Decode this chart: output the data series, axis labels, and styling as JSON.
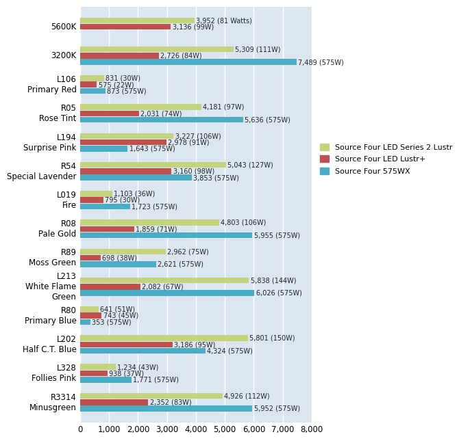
{
  "categories": [
    [
      "5600K",
      ""
    ],
    [
      "3200K",
      ""
    ],
    [
      "L106",
      "Primary Red"
    ],
    [
      "R05",
      "Rose Tint"
    ],
    [
      "L194",
      "Surprise Pink"
    ],
    [
      "R54",
      "Special Lavender"
    ],
    [
      "L019",
      "Fire"
    ],
    [
      "R08",
      "Pale Gold"
    ],
    [
      "R89",
      "Moss Green"
    ],
    [
      "L213",
      "White Flame\nGreen"
    ],
    [
      "R80",
      "Primary Blue"
    ],
    [
      "L202",
      "Half C.T. Blue"
    ],
    [
      "L328",
      "Follies Pink"
    ],
    [
      "R3314",
      "Minusgreen"
    ]
  ],
  "series": [
    {
      "name": "Source Four LED Series 2 Lustr",
      "color": "#c4d47e",
      "values": [
        3952,
        5309,
        831,
        4181,
        3227,
        5043,
        1103,
        4803,
        2962,
        5838,
        641,
        5801,
        1234,
        4926
      ],
      "labels": [
        "3,952 (81 Watts)",
        "5,309 (111W)",
        "831 (30W)",
        "4,181 (97W)",
        "3,227 (106W)",
        "5,043 (127W)",
        "1,103 (36W)",
        "4,803 (106W)",
        "2,962 (75W)",
        "5,838 (144W)",
        "641 (51W)",
        "5,801 (150W)",
        "1,234 (43W)",
        "4,926 (112W)"
      ]
    },
    {
      "name": "Source Four LED Lustr+",
      "color": "#c0504d",
      "values": [
        3136,
        2726,
        575,
        2031,
        2978,
        3160,
        795,
        1859,
        698,
        2082,
        743,
        3186,
        938,
        2352
      ],
      "labels": [
        "3,136 (99W)",
        "2,726 (84W)",
        "575 (22W)",
        "2,031 (74W)",
        "2,978 (91W)",
        "3,160 (98W)",
        "795 (30W)",
        "1,859 (71W)",
        "698 (38W)",
        "2,082 (67W)",
        "743 (45W)",
        "3,186 (95W)",
        "938 (37W)",
        "2,352 (83W)"
      ]
    },
    {
      "name": "Source Four 575WX",
      "color": "#4bacc6",
      "values": [
        null,
        7489,
        873,
        5636,
        1643,
        3853,
        1723,
        5955,
        2621,
        6026,
        353,
        4324,
        1771,
        5952
      ],
      "labels": [
        null,
        "7,489 (575W)",
        "873 (575W)",
        "5,636 (575W)",
        "1,643 (575W)",
        "3,853 (575W)",
        "1,723 (575W)",
        "5,955 (575W)",
        "2,621 (575W)",
        "6,026 (575W)",
        "353 (575W)",
        "4,324 (575W)",
        "1,771 (575W)",
        "5,952 (575W)"
      ]
    }
  ],
  "xlim": [
    0,
    8000
  ],
  "xticks": [
    0,
    1000,
    2000,
    3000,
    4000,
    5000,
    6000,
    7000,
    8000
  ],
  "xtick_labels": [
    "0",
    "1,000",
    "2,000",
    "3,000",
    "4,000",
    "5,000",
    "6,000",
    "7,000",
    "8,000"
  ],
  "background_color": "#ffffff",
  "plot_bg_color": "#dce6f1",
  "grid_color": "#ffffff",
  "bar_height": 0.22,
  "label_fontsize": 7.0,
  "tick_fontsize": 8.5
}
